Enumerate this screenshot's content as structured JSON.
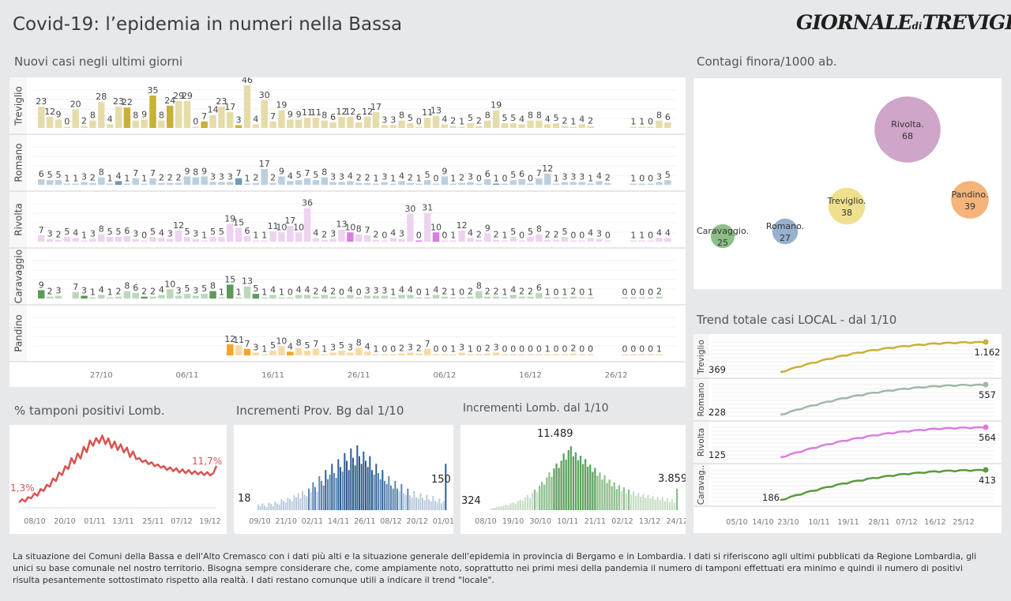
{
  "header": {
    "title": "Covid-19: l’epidemia  in numeri nella Bassa",
    "logo_main": "GIORNALE",
    "logo_di": "di",
    "logo_city": "TREVIGLIO"
  },
  "sections": {
    "new_cases": "Nuovi casi negli ultimi   giorni",
    "contagi": "Contagi finora/1000 ab.",
    "trend": "Trend totale casi  LOCAL - dal 1/10",
    "tamponi": "% tamponi positivi Lomb.",
    "prov_bg": "Incrementi Prov. Bg dal 1/10",
    "lomb": "Incrementi Lomb. dal 1/10"
  },
  "footer": {
    "text": "La situazione dei Comuni della Bassa e dell'Alto Cremasco con i dati più alti e la situazione generale dell'epidemia in provincia di Bergamo e in Lombardia.  I dati si riferiscono agli ultimi pubblicati da Regione Lombardia, gli unici su base comunale nel  nostro territorio.  Bisogna sempre considerare che, come ampiamente noto, soprattutto nei primi mesi della pandemia il numero di tamponi effettuati era minimo e quindi il numero di positivi risulta pesantemente sottostimato rispetto alla realtà. I dati restano comunque utili a indicare il trend \"locale\"."
  },
  "chart_data": [
    {
      "id": "new_cases",
      "type": "bar",
      "title": "Nuovi casi negli ultimi   giorni",
      "x_tick_labels": [
        "27/10",
        "06/11",
        "16/11",
        "26/11",
        "06/12",
        "16/12",
        "26/12"
      ],
      "series": [
        {
          "name": "Treviglio",
          "color": "#c9b037",
          "light": "#e6dcaa",
          "highlight": [
            10,
            13,
            15,
            19,
            23
          ],
          "values": [
            23,
            12,
            9,
            0,
            20,
            2,
            8,
            28,
            4,
            23,
            22,
            8,
            9,
            35,
            8,
            24,
            29,
            29,
            0,
            7,
            14,
            23,
            17,
            3,
            46,
            4,
            30,
            7,
            19,
            9,
            9,
            11,
            11,
            8,
            6,
            12,
            12,
            6,
            12,
            17,
            3,
            3,
            8,
            5,
            0,
            11,
            13,
            4,
            2,
            1,
            5,
            2,
            8,
            19,
            5,
            5,
            4,
            8,
            8,
            4,
            5,
            2,
            1,
            4,
            2,
            null,
            null,
            null,
            null,
            1,
            1,
            0,
            8,
            6
          ]
        },
        {
          "name": "Romano",
          "color": "#6e99b8",
          "light": "#bccfde",
          "highlight": [
            9,
            23,
            53
          ],
          "values": [
            6,
            5,
            5,
            1,
            1,
            3,
            2,
            8,
            1,
            4,
            1,
            7,
            1,
            7,
            2,
            2,
            2,
            9,
            8,
            9,
            3,
            3,
            3,
            7,
            1,
            2,
            17,
            2,
            9,
            4,
            5,
            7,
            5,
            8,
            3,
            3,
            4,
            2,
            2,
            1,
            3,
            1,
            4,
            2,
            1,
            5,
            0,
            9,
            1,
            2,
            3,
            0,
            6,
            1,
            0,
            5,
            6,
            0,
            7,
            12,
            1,
            3,
            3,
            3,
            1,
            4,
            2,
            null,
            null,
            1,
            0,
            0,
            3,
            5
          ]
        },
        {
          "name": "Rivolta",
          "color": "#d97ee0",
          "light": "#eed3f0",
          "highlight": [
            36,
            44,
            46
          ],
          "values": [
            7,
            3,
            2,
            5,
            4,
            1,
            3,
            8,
            5,
            5,
            6,
            3,
            0,
            5,
            4,
            3,
            12,
            5,
            3,
            1,
            5,
            5,
            19,
            15,
            6,
            1,
            1,
            11,
            10,
            17,
            10,
            36,
            4,
            2,
            3,
            13,
            10,
            8,
            7,
            2,
            0,
            4,
            3,
            30,
            0,
            31,
            10,
            0,
            1,
            12,
            4,
            2,
            9,
            2,
            1,
            5,
            0,
            5,
            8,
            2,
            2,
            5,
            0,
            0,
            4,
            3,
            0,
            null,
            null,
            1,
            1,
            0,
            4,
            4
          ]
        },
        {
          "name": "Caravaggio",
          "color": "#5c9a59",
          "light": "#bcd8bc",
          "highlight": [
            0,
            5,
            12,
            20,
            22,
            25
          ],
          "values": [
            9,
            2,
            3,
            null,
            7,
            3,
            1,
            4,
            1,
            2,
            8,
            6,
            2,
            2,
            4,
            10,
            3,
            5,
            3,
            5,
            8,
            1,
            15,
            1,
            13,
            5,
            1,
            4,
            1,
            0,
            4,
            4,
            2,
            4,
            2,
            0,
            4,
            0,
            3,
            3,
            3,
            1,
            4,
            4,
            0,
            1,
            4,
            2,
            1,
            0,
            2,
            8,
            2,
            2,
            1,
            4,
            2,
            2,
            6,
            1,
            0,
            1,
            2,
            0,
            1,
            null,
            null,
            null,
            0,
            0,
            0,
            0,
            2
          ]
        },
        {
          "name": "Pandino",
          "color": "#f5a623",
          "light": "#f8d9a6",
          "highlight": [
            0,
            2,
            7
          ],
          "offset": 22,
          "values": [
            12,
            11,
            7,
            3,
            1,
            5,
            10,
            4,
            8,
            5,
            7,
            1,
            3,
            5,
            3,
            8,
            4,
            1,
            0,
            0,
            2,
            3,
            2,
            7,
            0,
            0,
            1,
            3,
            1,
            0,
            2,
            3,
            0,
            0,
            0,
            0,
            0,
            1,
            0,
            0,
            2,
            0,
            0,
            null,
            null,
            null,
            0,
            0,
            0,
            0,
            1
          ]
        }
      ]
    },
    {
      "id": "contagi",
      "type": "scatter",
      "title": "Contagi finora/1000 ab.",
      "points": [
        {
          "name": "Caravaggio.",
          "value": 25,
          "color": "#8cbf88"
        },
        {
          "name": "Romano.",
          "value": 27,
          "color": "#97b1cf"
        },
        {
          "name": "Treviglio.",
          "value": 38,
          "color": "#efe08e"
        },
        {
          "name": "Rivolta.",
          "value": 68,
          "color": "#cfa5c9"
        },
        {
          "name": "Pandino.",
          "value": 39,
          "color": "#f4b47a"
        }
      ]
    },
    {
      "id": "trend",
      "type": "line",
      "title": "Trend totale casi  LOCAL - dal 1/10",
      "x_tick_labels": [
        "05/10",
        "14/10",
        "23/10",
        "10/11",
        "19/11",
        "28/11",
        "07/12",
        "16/12",
        "25/12"
      ],
      "series": [
        {
          "name": "Treviglio",
          "start": 369,
          "end": 1162,
          "start_label": "369",
          "end_label": "1.162",
          "color": "#c9b037"
        },
        {
          "name": "Romano",
          "start": 228,
          "end": 557,
          "start_label": "228",
          "end_label": "557",
          "color": "#9fb9a7"
        },
        {
          "name": "Rivolta",
          "start": 125,
          "end": 564,
          "start_label": "125",
          "end_label": "564",
          "color": "#d97ee0"
        },
        {
          "name": "Caravag..",
          "start": 186,
          "end": 413,
          "start_label": "186",
          "end_label": "413",
          "color": "#5c9a3c"
        }
      ]
    },
    {
      "id": "tamponi",
      "type": "line",
      "title": "% tamponi positivi Lomb.",
      "start_label": "1,3%",
      "end_label": "11,7%",
      "x_tick_labels": [
        "08/10",
        "20/10",
        "01/11",
        "13/11",
        "25/11",
        "07/12",
        "19/12"
      ],
      "values": [
        1.3,
        2.2,
        1.6,
        2.8,
        2.5,
        3.9,
        3.2,
        5.1,
        4.6,
        6.3,
        5.8,
        8.1,
        7.4,
        9.8,
        9.1,
        11.6,
        10.8,
        13.9,
        12.4,
        15.2,
        13.8,
        17.1,
        15.6,
        18.9,
        17.4,
        19.6,
        18.2,
        20.3,
        17.9,
        19.5,
        16.8,
        18.6,
        16.2,
        17.8,
        15.5,
        16.9,
        14.2,
        15.8,
        13.6,
        13.9,
        12.8,
        13.3,
        12.2,
        12.7,
        11.6,
        12.1,
        11.2,
        11.6,
        10.5,
        11.3,
        10.2,
        11.0,
        9.8,
        10.7,
        9.6,
        10.5,
        9.4,
        10.2,
        9.3,
        10.0,
        9.1,
        9.9,
        9.0,
        9.6,
        11.7
      ],
      "ylim": [
        0,
        22
      ]
    },
    {
      "id": "prov_bg",
      "type": "bar",
      "title": "Incrementi Prov. Bg dal 1/10",
      "start_label": "18",
      "end_label": "150",
      "x_tick_labels": [
        "09/10",
        "21/10",
        "02/11",
        "14/11",
        "26/11",
        "08/12",
        "20/12",
        "01/01"
      ],
      "values": [
        18,
        12,
        22,
        15,
        10,
        25,
        20,
        14,
        28,
        22,
        18,
        35,
        30,
        24,
        40,
        36,
        28,
        48,
        42,
        55,
        38,
        62,
        50,
        45,
        70,
        58,
        90,
        75,
        60,
        110,
        95,
        80,
        130,
        100,
        115,
        150,
        120,
        105,
        165,
        140,
        125,
        185,
        160,
        130,
        200,
        170,
        145,
        210,
        175,
        150,
        190,
        160,
        140,
        175,
        130,
        115,
        150,
        120,
        100,
        130,
        95,
        85,
        110,
        80,
        70,
        95,
        70,
        60,
        85,
        55,
        50,
        70,
        48,
        40,
        62,
        42,
        38,
        55,
        40,
        32,
        50,
        35,
        28,
        46,
        30,
        25,
        38,
        22,
        30,
        150
      ],
      "ylim": [
        0,
        220
      ]
    },
    {
      "id": "lomb",
      "type": "bar",
      "title": "Incrementi Lomb. dal 1/10",
      "start_label": "324",
      "peak_label": "11.489",
      "end_label": "3.859",
      "x_tick_labels": [
        "08/10",
        "19/10",
        "30/10",
        "10/11",
        "21/11",
        "02/12",
        "13/12",
        "24/12"
      ],
      "values": [
        324,
        400,
        500,
        600,
        700,
        800,
        1000,
        900,
        1200,
        1400,
        1100,
        1600,
        1900,
        1700,
        2300,
        2700,
        2200,
        3100,
        3700,
        3300,
        4400,
        5100,
        4600,
        5900,
        6800,
        6000,
        7500,
        8400,
        7600,
        8900,
        10200,
        9100,
        10800,
        11489,
        9700,
        10400,
        9000,
        9800,
        8300,
        9200,
        7800,
        8200,
        6900,
        7600,
        6200,
        6800,
        5500,
        6300,
        4900,
        5500,
        4300,
        5000,
        3800,
        4500,
        3400,
        4100,
        3000,
        3700,
        2800,
        3400,
        2600,
        3100,
        2400,
        2900,
        2200,
        2700,
        2100,
        2500,
        1900,
        2400,
        1800,
        2300,
        1600,
        2100,
        1500,
        2000,
        1300,
        3859
      ],
      "ylim": [
        0,
        12500
      ]
    }
  ]
}
